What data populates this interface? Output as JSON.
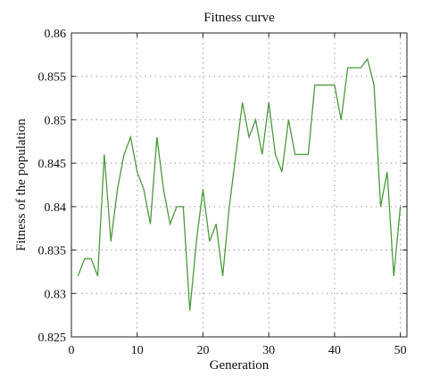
{
  "chart_data": {
    "type": "line",
    "title": "Fitness curve",
    "xlabel": "Generation",
    "ylabel": "Fitness of the population",
    "xlim": [
      0,
      51
    ],
    "ylim": [
      0.825,
      0.86
    ],
    "x_ticks": [
      0,
      10,
      20,
      30,
      40,
      50
    ],
    "y_ticks": [
      0.825,
      0.83,
      0.835,
      0.84,
      0.845,
      0.85,
      0.855,
      0.86
    ],
    "x_tick_labels": [
      "0",
      "10",
      "20",
      "30",
      "40",
      "50"
    ],
    "y_tick_labels": [
      "0.825",
      "0.83",
      "0.835",
      "0.84",
      "0.845",
      "0.85",
      "0.855",
      "0.86"
    ],
    "grid": true,
    "series": [
      {
        "color": "#4a9a3c",
        "x": [
          1,
          2,
          3,
          4,
          5,
          6,
          7,
          8,
          9,
          10,
          11,
          12,
          13,
          14,
          15,
          16,
          17,
          18,
          19,
          20,
          21,
          22,
          23,
          24,
          25,
          26,
          27,
          28,
          29,
          30,
          31,
          32,
          33,
          34,
          35,
          36,
          37,
          38,
          39,
          40,
          41,
          42,
          43,
          44,
          45,
          46,
          47,
          48,
          49,
          50
        ],
        "y": [
          0.832,
          0.834,
          0.834,
          0.832,
          0.846,
          0.836,
          0.842,
          0.846,
          0.848,
          0.844,
          0.842,
          0.838,
          0.848,
          0.842,
          0.838,
          0.84,
          0.84,
          0.828,
          0.836,
          0.842,
          0.836,
          0.838,
          0.832,
          0.84,
          0.846,
          0.852,
          0.848,
          0.85,
          0.846,
          0.852,
          0.846,
          0.844,
          0.85,
          0.846,
          0.846,
          0.846,
          0.854,
          0.854,
          0.854,
          0.854,
          0.85,
          0.856,
          0.856,
          0.856,
          0.857,
          0.854,
          0.84,
          0.844,
          0.832,
          0.84
        ]
      }
    ]
  }
}
